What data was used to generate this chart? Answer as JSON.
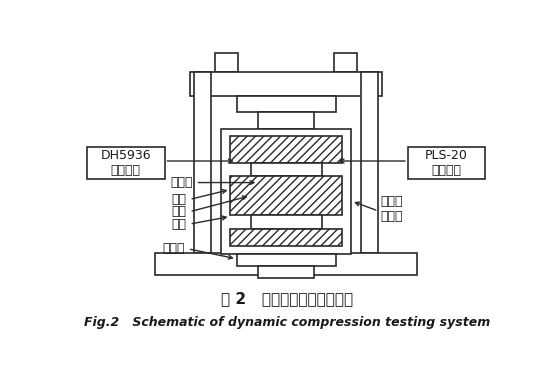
{
  "title_cn": "图 2   动态压缩试验系统示意",
  "title_en": "Fig.2   Schematic of dynamic compression testing system",
  "bg_color": "#ffffff",
  "lc": "#2a2a2a",
  "label_dh": "DH5936\n测试系统",
  "label_pls": "PLS-20\n控制软件",
  "label_upper": "上夹头",
  "label_clamp1": "夹具",
  "label_sample": "试样",
  "label_clamp2": "夹具",
  "label_lower": "下夹头",
  "label_chamber": "高低温\n环境箱",
  "font_cn": "SimSun",
  "font_en": "DejaVu Sans"
}
